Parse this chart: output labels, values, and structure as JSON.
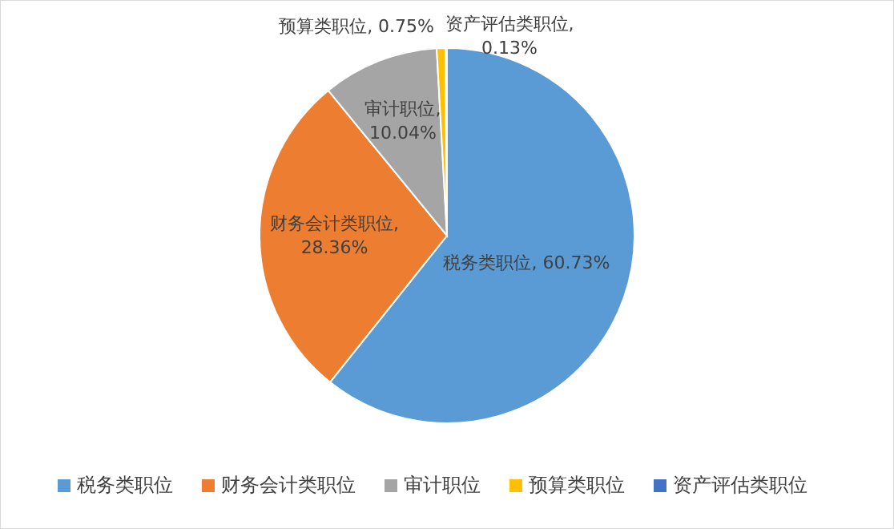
{
  "chart_data": {
    "type": "pie",
    "categories": [
      "税务类职位",
      "财务会计类职位",
      "审计职位",
      "预算类职位",
      "资产评估类职位"
    ],
    "values": [
      60.73,
      28.36,
      10.04,
      0.75,
      0.13
    ],
    "colors": [
      "#5b9bd5",
      "#ed7d31",
      "#a5a5a5",
      "#ffc000",
      "#4472c4"
    ],
    "value_labels": [
      "税务类职位, 60.73%",
      "财务会计类职位, 28.36%",
      "审计职位, 10.04%",
      "预算类职位, 0.75%",
      "资产评估类职位, 0.13%"
    ],
    "legend": "bottom"
  }
}
